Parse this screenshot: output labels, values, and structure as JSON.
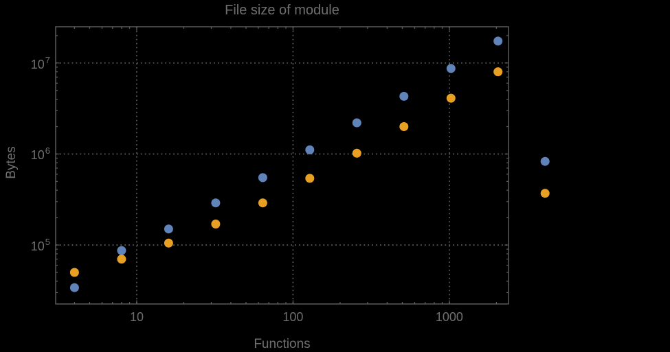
{
  "chart_data": {
    "type": "scatter",
    "title": "File size of module",
    "xlabel": "Functions",
    "ylabel": "Bytes",
    "x_scale": "log",
    "y_scale": "log",
    "xlim": [
      3.03,
      2390
    ],
    "ylim": [
      22500,
      25000000
    ],
    "grid": "dotted gray major gridlines on both axes",
    "legend": "none",
    "x": [
      4,
      8,
      16,
      32,
      64,
      128,
      256,
      512,
      1024,
      2048,
      4096
    ],
    "series": [
      {
        "name": "series-1-blue",
        "color": "#6083BA",
        "values": [
          34000,
          87000,
          150000,
          290000,
          550000,
          1110000,
          2200000,
          4300000,
          8700000,
          17400000,
          830000
        ]
      },
      {
        "name": "series-2-orange",
        "color": "#E8A023",
        "values": [
          50000,
          70000,
          105000,
          170000,
          290000,
          540000,
          1020000,
          2000000,
          4100000,
          8000000,
          370000
        ]
      }
    ],
    "x_ticks": [
      {
        "label": "10",
        "value": 10
      },
      {
        "label": "100",
        "value": 100
      },
      {
        "label": "1000",
        "value": 1000
      }
    ],
    "y_ticks": [
      {
        "base": "10",
        "exp": "5",
        "value": 100000
      },
      {
        "base": "10",
        "exp": "6",
        "value": 1000000
      },
      {
        "base": "10",
        "exp": "7",
        "value": 10000000
      }
    ],
    "appearance": {
      "background": "#000000",
      "text_color": "#6F6F6F",
      "frame_color": "#606060",
      "grid_color": "#575757",
      "note": "last data pair rendered outside right frame edge (unclipped)"
    }
  }
}
